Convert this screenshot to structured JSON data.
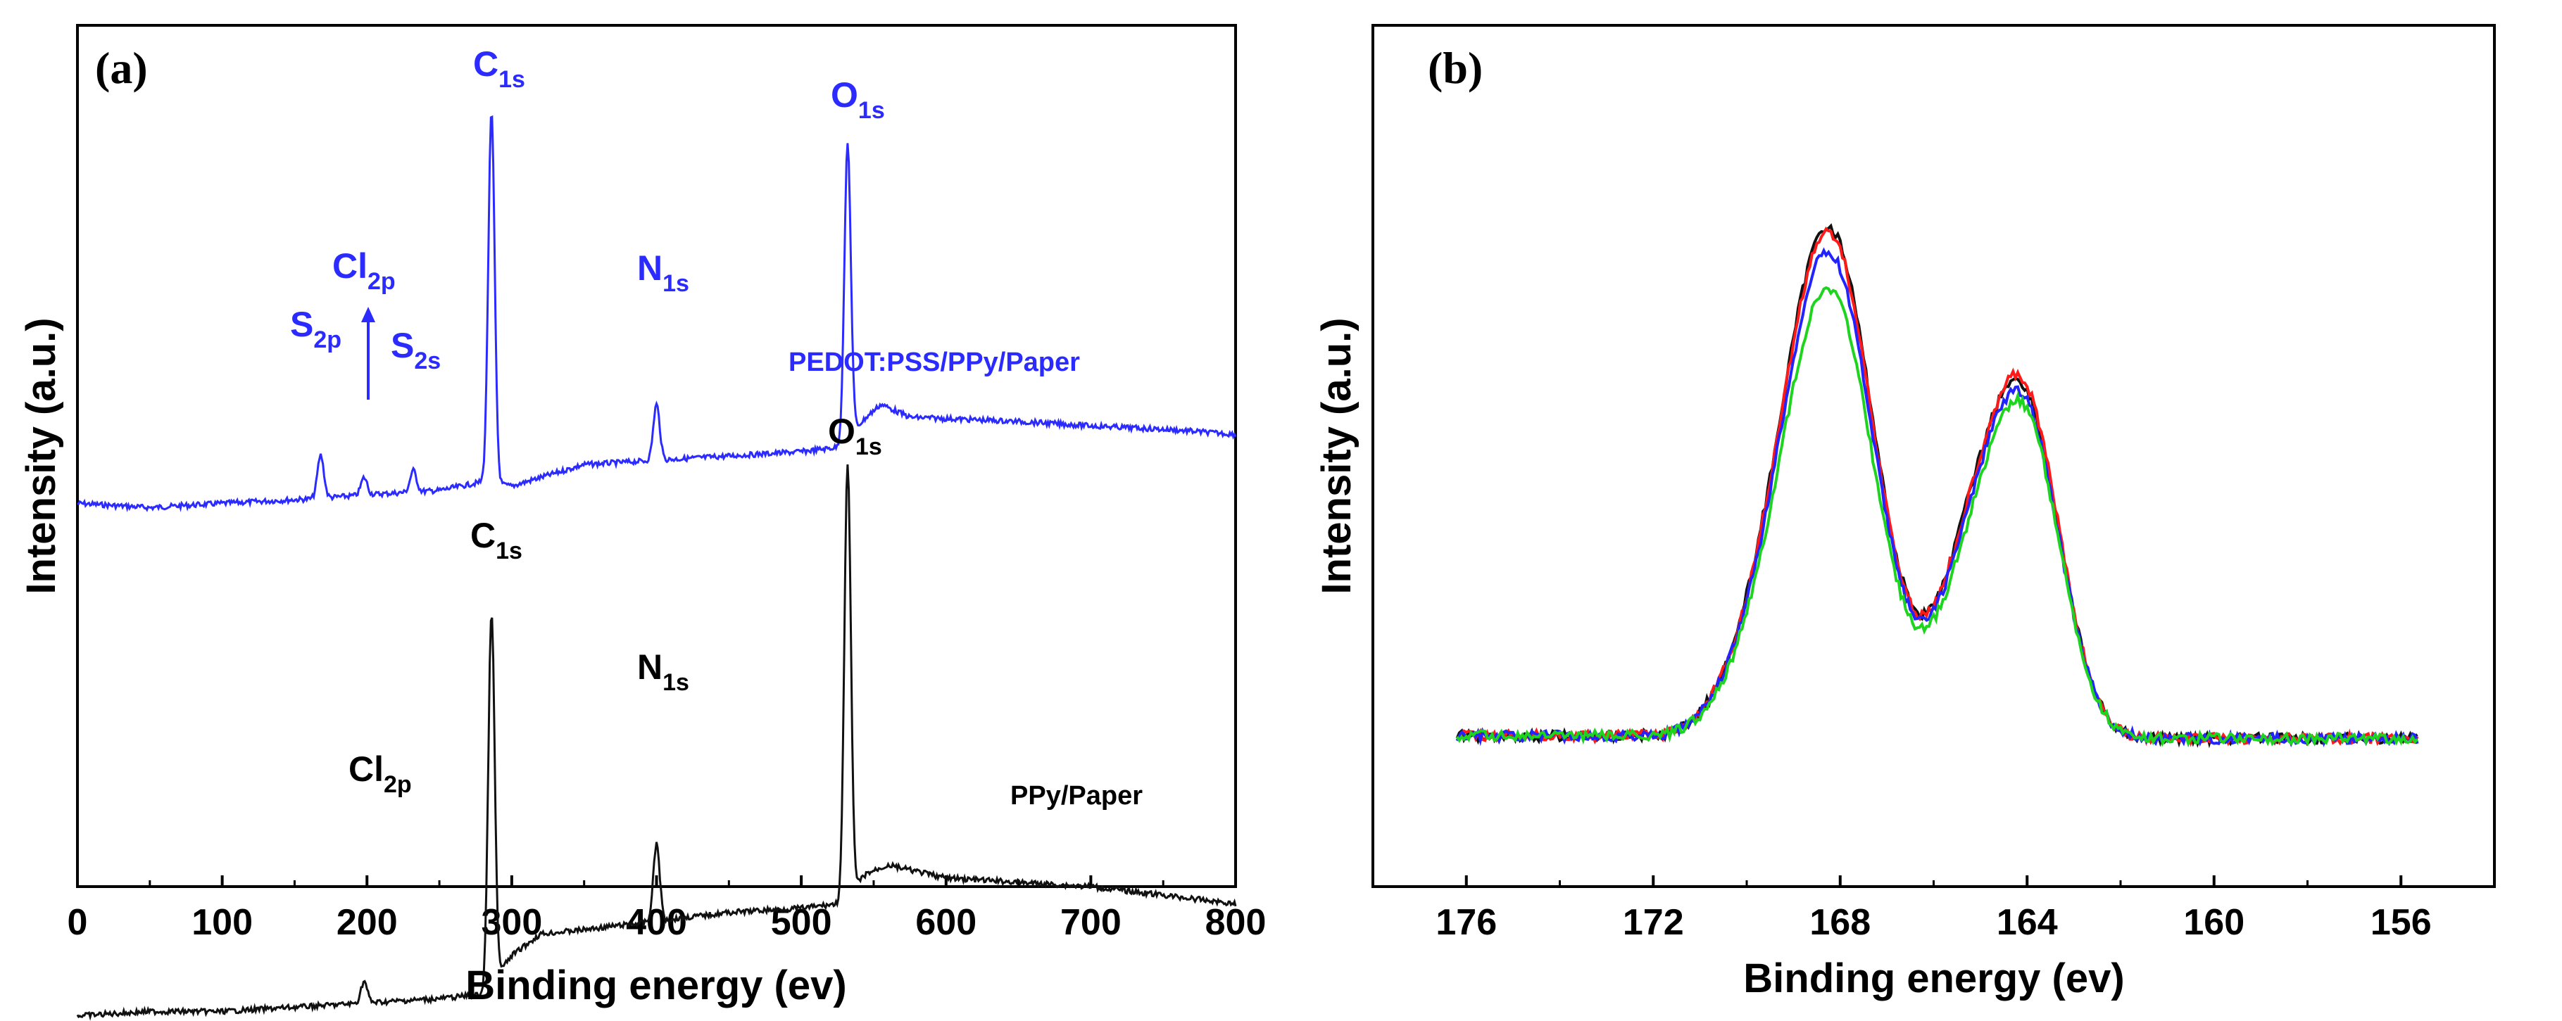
{
  "chart_data": [
    {
      "panel": "(a)",
      "type": "line",
      "xlabel": "Binding energy (ev)",
      "ylabel": "Intensity (a.u.)",
      "xlim": [
        0,
        800
      ],
      "x_ticks": [
        "0",
        "100",
        "200",
        "300",
        "400",
        "500",
        "600",
        "700",
        "800"
      ],
      "colors": {
        "pedot": "#2b2bff",
        "ppy": "#111111"
      },
      "series": [
        {
          "name": "PEDOT:PSS/PPy/Paper",
          "color": "#2b2bff",
          "baseline": [
            [
              0,
              0.555
            ],
            [
              50,
              0.56
            ],
            [
              100,
              0.555
            ],
            [
              160,
              0.55
            ],
            [
              200,
              0.545
            ],
            [
              250,
              0.54
            ],
            [
              280,
              0.53
            ],
            [
              300,
              0.535
            ],
            [
              320,
              0.525
            ],
            [
              350,
              0.51
            ],
            [
              400,
              0.505
            ],
            [
              450,
              0.5
            ],
            [
              500,
              0.495
            ],
            [
              525,
              0.49
            ],
            [
              545,
              0.455
            ],
            [
              555,
              0.44
            ],
            [
              575,
              0.455
            ],
            [
              650,
              0.46
            ],
            [
              700,
              0.465
            ],
            [
              760,
              0.47
            ],
            [
              800,
              0.475
            ]
          ],
          "peaks": [
            {
              "label": "S",
              "sub": "2p",
              "x": 168,
              "height": 0.05
            },
            {
              "label": "Cl",
              "sub": "2p",
              "x": 198,
              "height": 0.02
            },
            {
              "label": "S",
              "sub": "2s",
              "x": 232,
              "height": 0.025
            },
            {
              "label": "C",
              "sub": "1s",
              "x": 286,
              "height": 0.43
            },
            {
              "label": "N",
              "sub": "1s",
              "x": 400,
              "height": 0.065
            },
            {
              "label": "O",
              "sub": "1s",
              "x": 532,
              "height": 0.34
            }
          ],
          "annotation": "PEDOT:PSS/PPy/Paper"
        },
        {
          "name": "PPy/Paper",
          "color": "#111111",
          "baseline": [
            [
              0,
              1.15
            ],
            [
              50,
              1.145
            ],
            [
              100,
              1.145
            ],
            [
              150,
              1.14
            ],
            [
              200,
              1.135
            ],
            [
              250,
              1.13
            ],
            [
              280,
              1.125
            ],
            [
              300,
              1.08
            ],
            [
              320,
              1.055
            ],
            [
              350,
              1.05
            ],
            [
              400,
              1.04
            ],
            [
              450,
              1.03
            ],
            [
              500,
              1.025
            ],
            [
              525,
              1.02
            ],
            [
              545,
              0.985
            ],
            [
              560,
              0.975
            ],
            [
              600,
              0.99
            ],
            [
              700,
              1.0
            ],
            [
              800,
              1.02
            ]
          ],
          "peaks": [
            {
              "label": "Cl",
              "sub": "2p",
              "x": 198,
              "height": 0.025
            },
            {
              "label": "C",
              "sub": "1s",
              "x": 286,
              "height": 0.43
            },
            {
              "label": "N",
              "sub": "1s",
              "x": 400,
              "height": 0.09
            },
            {
              "label": "O",
              "sub": "1s",
              "x": 532,
              "height": 0.5
            }
          ],
          "annotation": "PPy/Paper"
        }
      ]
    },
    {
      "panel": "(b)",
      "type": "line",
      "xlabel": "Binding energy (ev)",
      "ylabel": "Intensity (a.u.)",
      "xlim": [
        178,
        154
      ],
      "x_ticks": [
        "176",
        "172",
        "168",
        "164",
        "160",
        "156"
      ],
      "series": [
        {
          "name": "black",
          "color": "#111111",
          "scale": 1.0,
          "doublet": 0.78
        },
        {
          "name": "red",
          "color": "#ff1a1a",
          "scale": 0.99,
          "doublet": 0.8
        },
        {
          "name": "blue",
          "color": "#2323ff",
          "scale": 0.95,
          "doublet": 0.8
        },
        {
          "name": "green",
          "color": "#1fd41f",
          "scale": 0.88,
          "doublet": 0.85
        }
      ]
    }
  ],
  "panels": [
    {
      "label": "(a)",
      "xlabel": "Binding energy (ev)",
      "ylabel": "Intensity (a.u.)",
      "ticks": [
        "0",
        "100",
        "200",
        "300",
        "400",
        "500",
        "600",
        "700",
        "800"
      ],
      "annotations": {
        "pedot": "PEDOT:PSS/PPy/Paper",
        "ppy": "PPy/Paper"
      },
      "peaks_pedot": [
        {
          "main": "S",
          "sub": "2p"
        },
        {
          "main": "Cl",
          "sub": "2p"
        },
        {
          "main": "S",
          "sub": "2s"
        },
        {
          "main": "C",
          "sub": "1s"
        },
        {
          "main": "N",
          "sub": "1s"
        },
        {
          "main": "O",
          "sub": "1s"
        }
      ],
      "peaks_ppy": [
        {
          "main": "Cl",
          "sub": "2p"
        },
        {
          "main": "C",
          "sub": "1s"
        },
        {
          "main": "N",
          "sub": "1s"
        },
        {
          "main": "O",
          "sub": "1s"
        }
      ]
    },
    {
      "label": "(b)",
      "xlabel": "Binding energy (ev)",
      "ylabel": "Intensity (a.u.)",
      "ticks": [
        "176",
        "172",
        "168",
        "164",
        "160",
        "156"
      ]
    }
  ]
}
